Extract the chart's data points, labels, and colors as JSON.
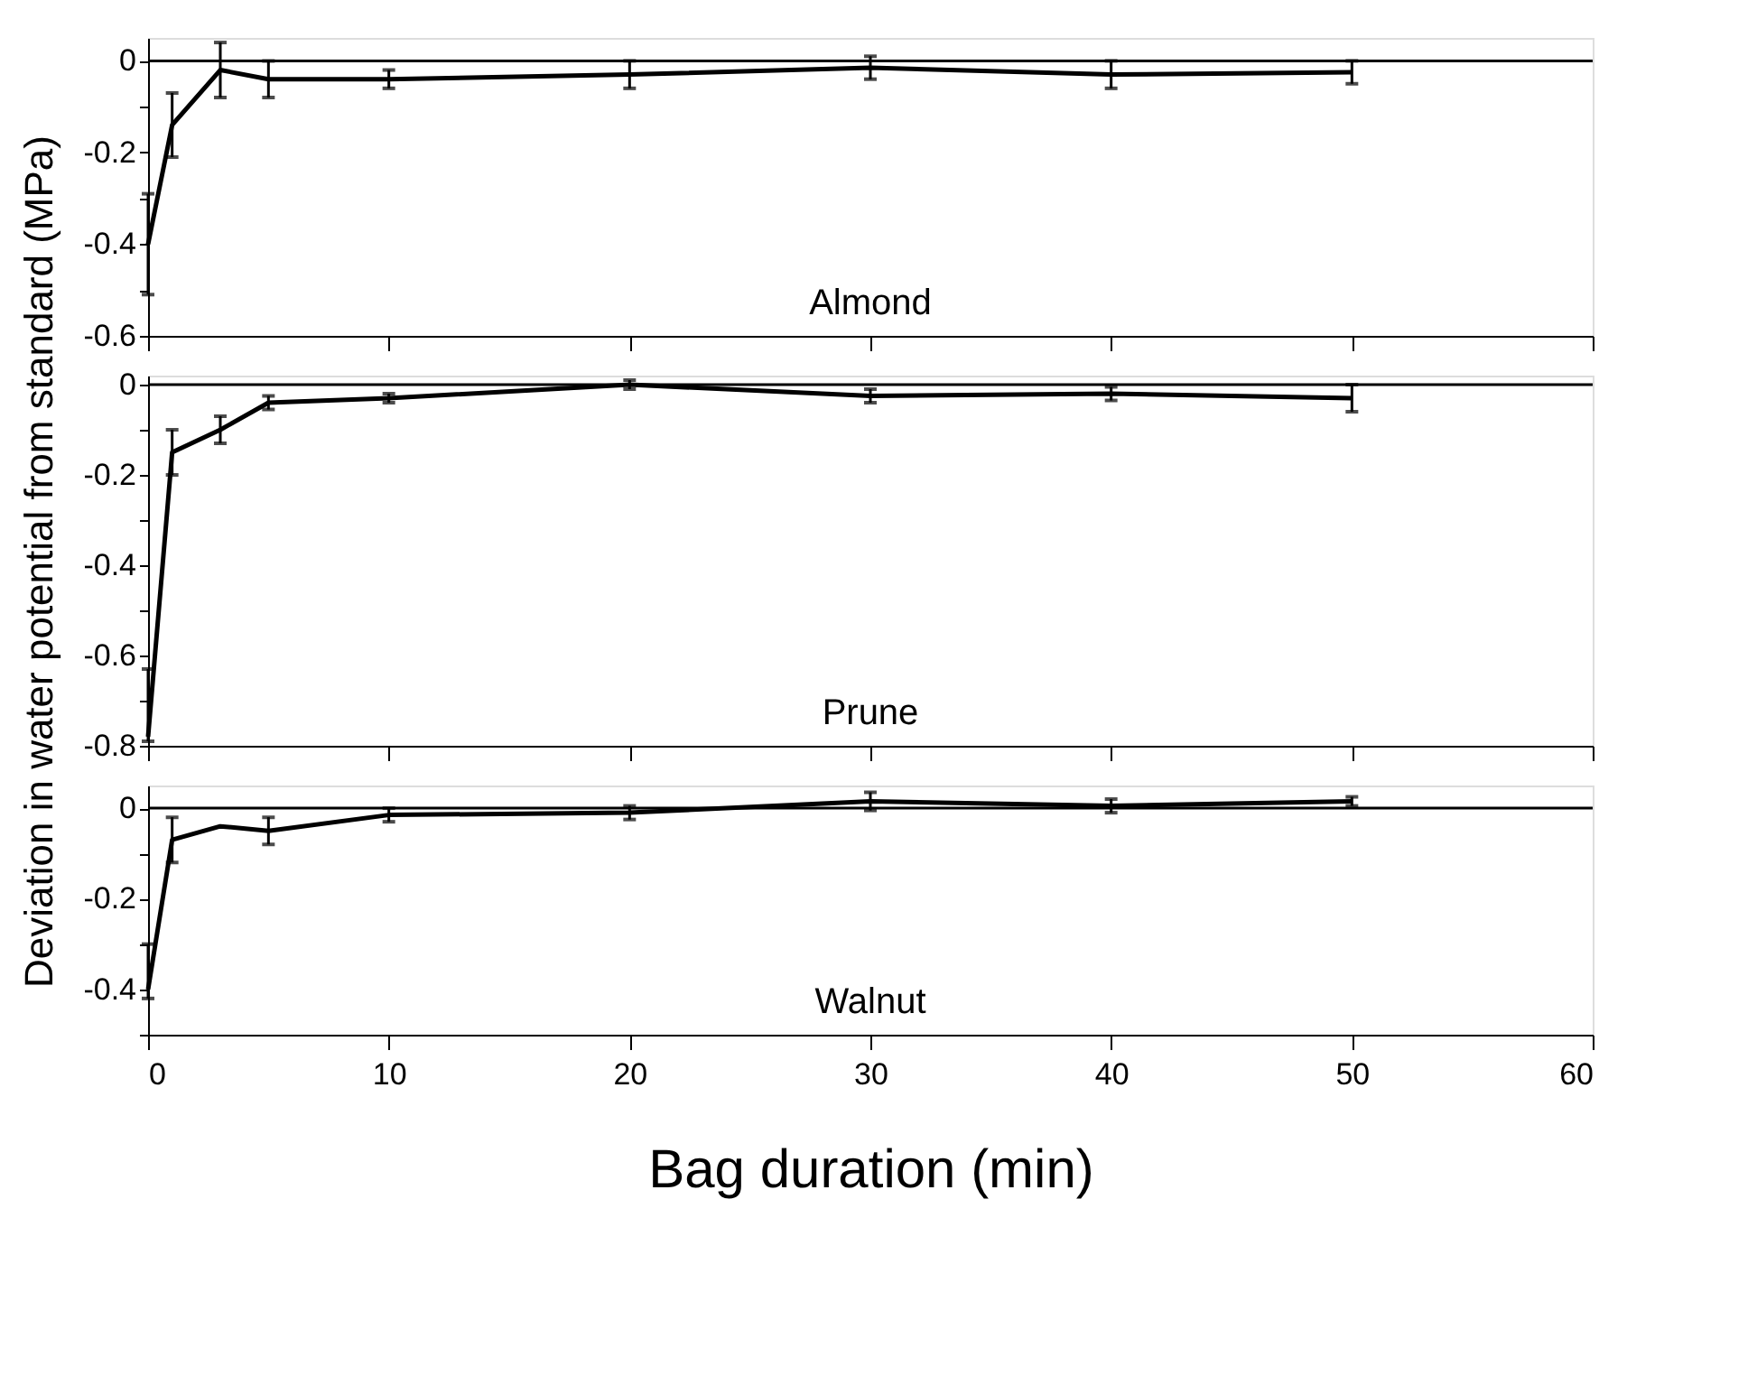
{
  "chart_data": [
    {
      "type": "line",
      "x": [
        0,
        1,
        3,
        5,
        10,
        20,
        30,
        40,
        50
      ],
      "xlim": [
        0,
        60
      ],
      "xticks": [
        0,
        10,
        20,
        30,
        40,
        50,
        60
      ],
      "ylim": [
        -0.6,
        0.05
      ],
      "yticks": [
        -0.6,
        {
          "value": -0.5,
          "label": null
        },
        -0.4,
        {
          "value": -0.3,
          "label": null
        },
        -0.2,
        {
          "value": -0.1,
          "label": null
        },
        0
      ],
      "tick_labels": "y",
      "marker": "none",
      "line_style": "solid",
      "series": [
        {
          "name": "Almond",
          "color": "#000000",
          "values": [
            -0.4,
            -0.14,
            -0.02,
            -0.04,
            -0.04,
            -0.03,
            -0.015,
            -0.03,
            -0.025
          ],
          "errors": [
            0.11,
            0.07,
            0.06,
            0.04,
            0.02,
            0.03,
            0.025,
            0.03,
            0.025
          ]
        }
      ],
      "ref_lines": [
        {
          "axis": "y",
          "value": 0,
          "label": null
        }
      ]
    },
    {
      "type": "line",
      "x": [
        0,
        1,
        3,
        5,
        10,
        20,
        30,
        40,
        50
      ],
      "xlim": [
        0,
        60
      ],
      "xticks": [
        0,
        10,
        20,
        30,
        40,
        50,
        60
      ],
      "ylim": [
        -0.8,
        0.02
      ],
      "yticks": [
        -0.8,
        {
          "value": -0.7,
          "label": null
        },
        -0.6,
        {
          "value": -0.5,
          "label": null
        },
        -0.4,
        {
          "value": -0.3,
          "label": null
        },
        -0.2,
        {
          "value": -0.1,
          "label": null
        },
        0
      ],
      "tick_labels": "y",
      "marker": "none",
      "line_style": "solid",
      "ylabel": "Deviation in water potential from standard (MPa)",
      "series": [
        {
          "name": "Prune",
          "color": "#000000",
          "values": [
            -0.78,
            -0.15,
            -0.1,
            -0.04,
            -0.03,
            0,
            -0.025,
            -0.02,
            -0.03
          ],
          "errors": [
            [
              -0.79,
              -0.63
            ],
            0.05,
            0.03,
            0.015,
            0.01,
            0.01,
            0.015,
            0.015,
            0.03
          ]
        }
      ],
      "ref_lines": [
        {
          "axis": "y",
          "value": 0,
          "label": null
        }
      ]
    },
    {
      "type": "line",
      "x": [
        0,
        1,
        3,
        5,
        10,
        20,
        30,
        40,
        50
      ],
      "xlim": [
        0,
        60
      ],
      "xticks": [
        0,
        10,
        20,
        30,
        40,
        50,
        60
      ],
      "ylim": [
        -0.5,
        0.05
      ],
      "yticks": [
        {
          "value": -0.5,
          "label": null
        },
        -0.4,
        {
          "value": -0.3,
          "label": null
        },
        -0.2,
        {
          "value": -0.1,
          "label": null
        },
        0
      ],
      "marker": "none",
      "line_style": "solid",
      "xlabel": "Bag duration (min)",
      "series": [
        {
          "name": "Walnut",
          "color": "#000000",
          "values": [
            -0.4,
            -0.07,
            -0.04,
            -0.05,
            -0.015,
            -0.01,
            0.015,
            0.005,
            0.015
          ],
          "errors": [
            [
              -0.42,
              -0.3
            ],
            0.05,
            null,
            0.03,
            0.015,
            0.015,
            0.02,
            0.015,
            0.01
          ]
        }
      ],
      "ref_lines": [
        {
          "axis": "y",
          "value": 0,
          "label": null
        }
      ]
    }
  ]
}
